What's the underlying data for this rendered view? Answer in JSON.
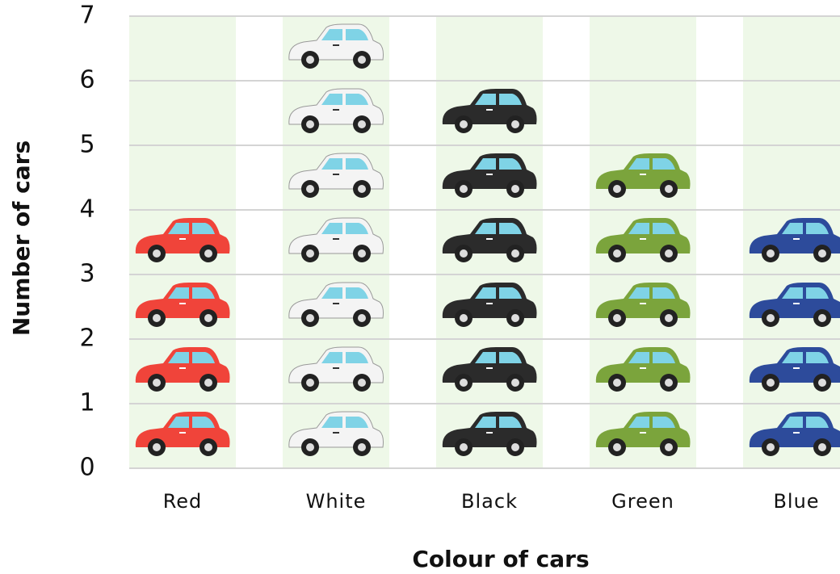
{
  "chart_data": {
    "type": "pictograph",
    "x_label": "Colour of cars",
    "y_label": "Number of cars",
    "categories": [
      "Red",
      "White",
      "Black",
      "Green",
      "Blue"
    ],
    "values": [
      4,
      7,
      6,
      5,
      4
    ],
    "colors": [
      "#f0443a",
      "#f4f4f4",
      "#2b2b2b",
      "#7ba43c",
      "#2d4b9b"
    ],
    "column_background": "#eef8e8",
    "ylim": [
      0,
      7
    ],
    "yticks": [
      0,
      1,
      2,
      3,
      4,
      5,
      6,
      7
    ],
    "grid": true
  }
}
